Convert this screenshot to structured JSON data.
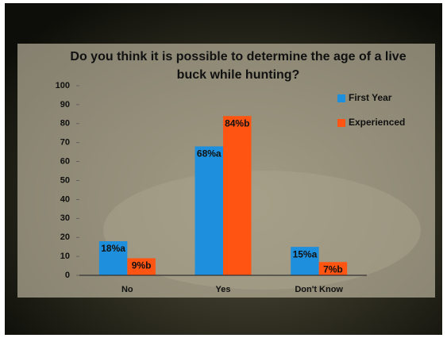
{
  "chart_data": {
    "type": "bar",
    "title": "Do you think it is possible to determine the age of a live buck while hunting?",
    "categories": [
      "No",
      "Yes",
      "Don't Know"
    ],
    "series": [
      {
        "name": "First Year",
        "color": "#1e8fdc",
        "values": [
          18,
          68,
          15
        ],
        "value_labels": [
          "18%a",
          "68%a",
          "15%a"
        ]
      },
      {
        "name": "Experienced",
        "color": "#ff5412",
        "values": [
          9,
          84,
          7
        ],
        "value_labels": [
          "9%b",
          "84%b",
          "7%b"
        ]
      }
    ],
    "ylim": [
      0,
      100
    ],
    "yticks": [
      0,
      10,
      20,
      30,
      40,
      50,
      60,
      70,
      80,
      90,
      100
    ],
    "grid": false,
    "legend": "right"
  }
}
